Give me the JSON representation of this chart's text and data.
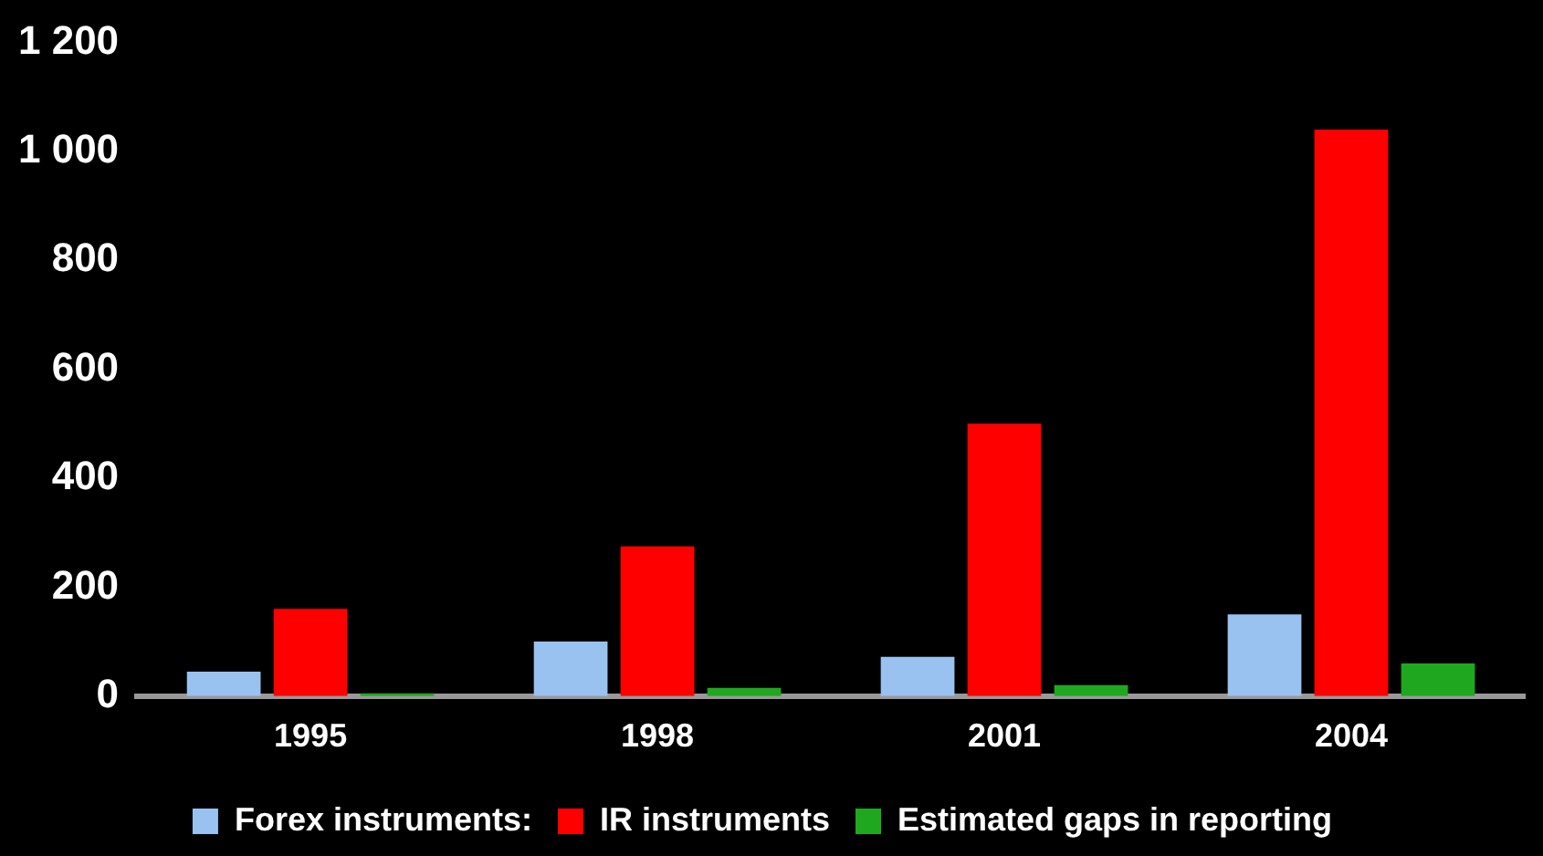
{
  "chart_data": {
    "type": "bar",
    "categories": [
      "1995",
      "1998",
      "2001",
      "2004"
    ],
    "series": [
      {
        "name": "Forex instruments:",
        "color": "#99c2f0",
        "values": [
          45,
          100,
          72,
          150
        ]
      },
      {
        "name": "IR instruments",
        "color": "#ff0000",
        "values": [
          160,
          275,
          500,
          1040
        ]
      },
      {
        "name": "Estimated gaps in reporting",
        "color": "#1fa81f",
        "values": [
          5,
          15,
          20,
          60
        ]
      }
    ],
    "ylim": [
      0,
      1200
    ],
    "yticks": [
      0,
      200,
      400,
      600,
      800,
      {
        "value": 1000,
        "label": "1 000"
      },
      {
        "value": 1200,
        "label": "1 200"
      }
    ],
    "grid": false,
    "legend": "bottom"
  }
}
